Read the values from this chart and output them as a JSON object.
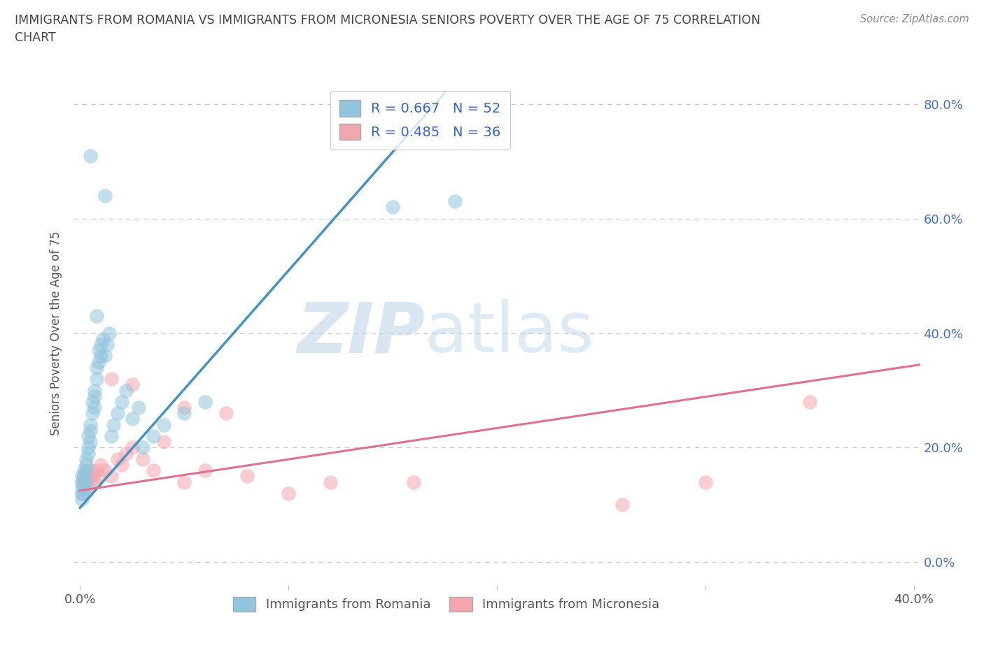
{
  "title_line1": "IMMIGRANTS FROM ROMANIA VS IMMIGRANTS FROM MICRONESIA SENIORS POVERTY OVER THE AGE OF 75 CORRELATION",
  "title_line2": "CHART",
  "source": "Source: ZipAtlas.com",
  "ylabel": "Seniors Poverty Over the Age of 75",
  "xlim": [
    -0.003,
    0.403
  ],
  "ylim": [
    -0.04,
    0.84
  ],
  "xticks": [
    0.0,
    0.1,
    0.2,
    0.3,
    0.4
  ],
  "yticks": [
    0.0,
    0.2,
    0.4,
    0.6,
    0.8
  ],
  "xticklabels": [
    "0.0%",
    "",
    "",
    "",
    "40.0%"
  ],
  "yticklabels_right": [
    "0.0%",
    "20.0%",
    "40.0%",
    "60.0%",
    "80.0%"
  ],
  "romania_color": "#92c5de",
  "micronesia_color": "#f4a6b0",
  "trendline_romania_color": "#4393c3",
  "trendline_micronesia_color": "#e07090",
  "romania_R": 0.667,
  "romania_N": 52,
  "micronesia_R": 0.485,
  "micronesia_N": 36,
  "romania_trend_x0": 0.0,
  "romania_trend_y0": 0.095,
  "romania_trend_x1": 0.175,
  "romania_trend_y1": 0.82,
  "micronesia_trend_x0": 0.0,
  "micronesia_trend_y0": 0.125,
  "micronesia_trend_x1": 0.403,
  "micronesia_trend_y1": 0.345,
  "background_color": "#ffffff",
  "grid_color": "#c8c8c8",
  "right_axis_color": "#4472c4",
  "label_color": "#555555",
  "title_color": "#444444",
  "legend_label_color": "#3366cc",
  "romania_scatter_x": [
    0.001,
    0.001,
    0.001,
    0.001,
    0.001,
    0.002,
    0.002,
    0.002,
    0.002,
    0.002,
    0.003,
    0.003,
    0.003,
    0.003,
    0.004,
    0.004,
    0.004,
    0.005,
    0.005,
    0.005,
    0.006,
    0.006,
    0.007,
    0.007,
    0.007,
    0.008,
    0.008,
    0.009,
    0.009,
    0.01,
    0.01,
    0.011,
    0.012,
    0.013,
    0.014,
    0.015,
    0.016,
    0.018,
    0.02,
    0.022,
    0.025,
    0.028,
    0.03,
    0.035,
    0.04,
    0.05,
    0.06,
    0.005,
    0.008,
    0.012,
    0.15,
    0.18
  ],
  "romania_scatter_y": [
    0.12,
    0.14,
    0.15,
    0.13,
    0.11,
    0.14,
    0.16,
    0.12,
    0.15,
    0.13,
    0.16,
    0.18,
    0.14,
    0.17,
    0.2,
    0.22,
    0.19,
    0.24,
    0.21,
    0.23,
    0.26,
    0.28,
    0.3,
    0.27,
    0.29,
    0.32,
    0.34,
    0.35,
    0.37,
    0.36,
    0.38,
    0.39,
    0.36,
    0.38,
    0.4,
    0.22,
    0.24,
    0.26,
    0.28,
    0.3,
    0.25,
    0.27,
    0.2,
    0.22,
    0.24,
    0.26,
    0.28,
    0.71,
    0.43,
    0.64,
    0.62,
    0.63
  ],
  "micronesia_scatter_x": [
    0.001,
    0.001,
    0.002,
    0.002,
    0.003,
    0.003,
    0.004,
    0.005,
    0.005,
    0.006,
    0.007,
    0.008,
    0.009,
    0.01,
    0.012,
    0.015,
    0.018,
    0.02,
    0.022,
    0.025,
    0.03,
    0.035,
    0.04,
    0.05,
    0.06,
    0.08,
    0.1,
    0.12,
    0.05,
    0.07,
    0.16,
    0.26,
    0.3,
    0.35,
    0.015,
    0.025
  ],
  "micronesia_scatter_y": [
    0.12,
    0.14,
    0.13,
    0.15,
    0.14,
    0.13,
    0.15,
    0.16,
    0.14,
    0.15,
    0.14,
    0.16,
    0.15,
    0.17,
    0.16,
    0.15,
    0.18,
    0.17,
    0.19,
    0.2,
    0.18,
    0.16,
    0.21,
    0.14,
    0.16,
    0.15,
    0.12,
    0.14,
    0.27,
    0.26,
    0.14,
    0.1,
    0.14,
    0.28,
    0.32,
    0.31
  ]
}
